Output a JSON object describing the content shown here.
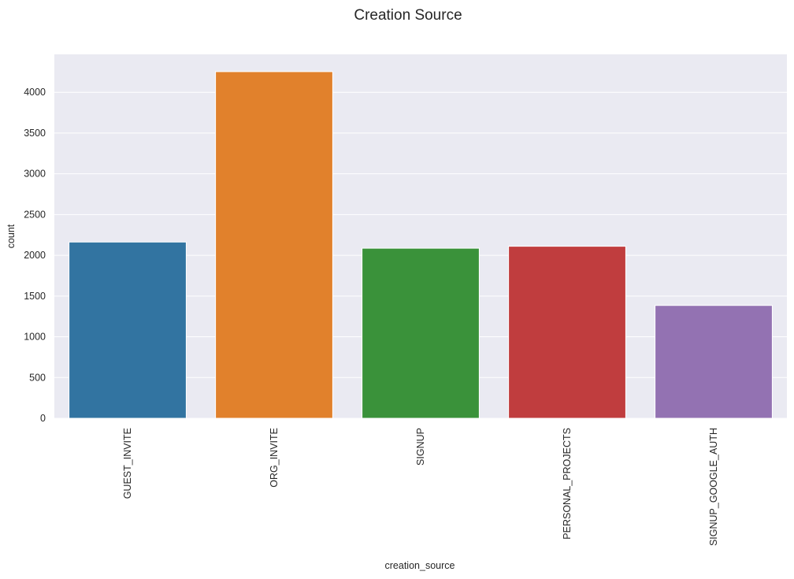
{
  "chart_data": {
    "type": "bar",
    "title": "Creation Source",
    "xlabel": "creation_source",
    "ylabel": "count",
    "categories": [
      "GUEST_INVITE",
      "ORG_INVITE",
      "SIGNUP",
      "PERSONAL_PROJECTS",
      "SIGNUP_GOOGLE_AUTH"
    ],
    "values": [
      2163,
      4254,
      2087,
      2111,
      1385
    ],
    "colors": [
      "#3274a1",
      "#e1812c",
      "#3a923a",
      "#c03d3e",
      "#9372b2"
    ],
    "ylim": [
      0,
      4466
    ],
    "yticks": [
      0,
      500,
      1000,
      1500,
      2000,
      2500,
      3000,
      3500,
      4000
    ],
    "grid": true,
    "background": "#eaeaf2",
    "gridcolor": "#ffffff"
  }
}
